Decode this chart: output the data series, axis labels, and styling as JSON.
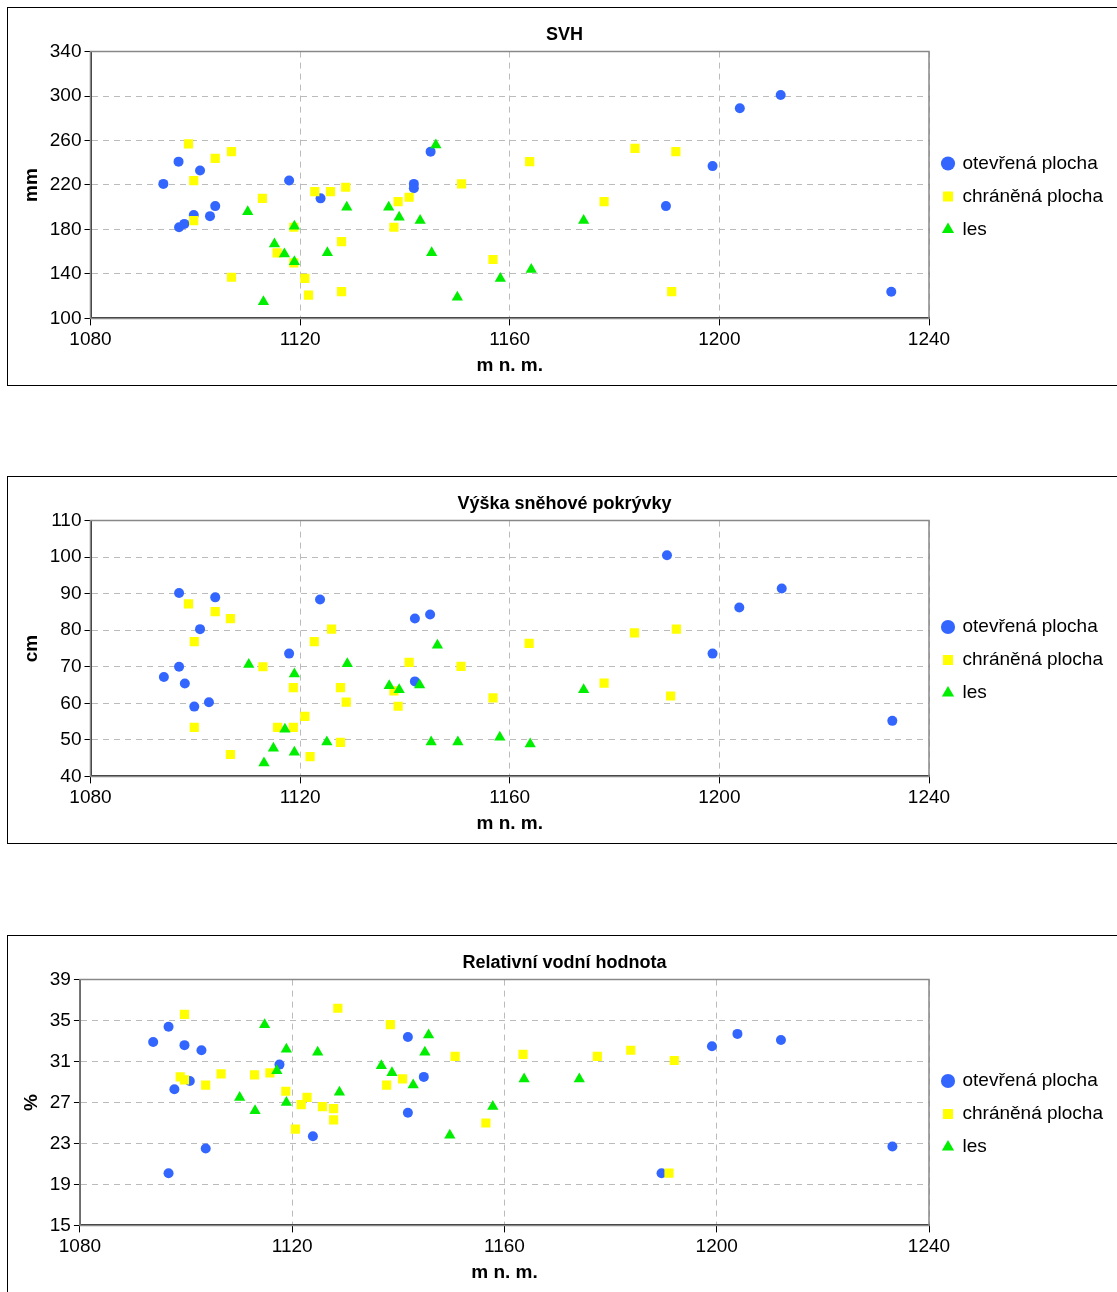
{
  "chart_data": [
    {
      "type": "scatter",
      "title": "SVH",
      "xlabel": "m n. m.",
      "ylabel": "mm",
      "xlim": [
        1080,
        1240
      ],
      "xticks": [
        1080,
        1120,
        1160,
        1200,
        1240
      ],
      "ylim": [
        100,
        340
      ],
      "yticks": [
        100,
        140,
        180,
        220,
        260,
        300,
        340
      ],
      "grid": true,
      "legend": "right",
      "series": [
        {
          "name": "otevřená plocha",
          "color": "#3366ff",
          "marker": "circle",
          "x": [
            1093.9,
            1096.8,
            1100.9,
            1099.7,
            1096.9,
            1097.9,
            1102.8,
            1103.8,
            1117.9,
            1123.9,
            1141.7,
            1141.7,
            1144.9,
            1203.9,
            1211.7,
            1198.7,
            1189.8,
            1232.8
          ],
          "values": [
            221,
            241,
            233,
            193,
            182,
            185,
            192,
            201,
            224,
            208,
            221,
            217,
            250,
            289,
            301,
            237,
            201,
            124
          ]
        },
        {
          "name": "chráněná plocha",
          "color": "#ffff00",
          "marker": "square",
          "x": [
            1098.7,
            1103.8,
            1106.9,
            1099.7,
            1099.7,
            1112.8,
            1115.6,
            1118.8,
            1118.8,
            1106.9,
            1120.9,
            1121.6,
            1122.8,
            1125.8,
            1128.7,
            1127.9,
            1127.9,
            1138.7,
            1140.8,
            1137.9,
            1150.8,
            1156.8,
            1163.8,
            1183.9,
            1191.7,
            1178,
            1190.9
          ],
          "values": [
            257,
            244,
            250,
            224,
            188,
            208,
            159,
            182,
            150,
            137,
            136,
            121,
            214,
            214,
            218,
            169,
            124,
            205,
            209,
            182,
            221,
            153,
            241,
            253,
            250,
            205,
            124
          ]
        },
        {
          "name": "les",
          "color": "#00ee00",
          "marker": "triangle",
          "x": [
            1110,
            1113,
            1115.1,
            1117,
            1118.9,
            1118.9,
            1125.2,
            1128.9,
            1136.9,
            1138.9,
            1142.9,
            1145.1,
            1145.9,
            1150,
            1158.2,
            1164.1,
            1174.1
          ],
          "values": [
            196,
            115,
            167,
            158,
            183,
            151,
            159,
            200,
            200,
            191,
            188,
            159,
            256,
            119,
            136,
            144,
            188
          ]
        }
      ]
    },
    {
      "type": "scatter",
      "title": "Výška sněhové pokrývky",
      "xlabel": "m n. m.",
      "ylabel": "cm",
      "xlim": [
        1080,
        1240
      ],
      "xticks": [
        1080,
        1120,
        1160,
        1200,
        1240
      ],
      "ylim": [
        40,
        110
      ],
      "yticks": [
        40,
        50,
        60,
        70,
        80,
        90,
        100,
        110
      ],
      "grid": true,
      "legend": "right",
      "series": [
        {
          "name": "otevřená plocha",
          "color": "#3366ff",
          "marker": "circle",
          "x": [
            1096.9,
            1103.8,
            1100.9,
            1117.9,
            1096.9,
            1094,
            1098,
            1099.8,
            1102.6,
            1123.8,
            1141.9,
            1144.8,
            1141.9,
            1190,
            1211.9,
            1203.8,
            1198.7,
            1233
          ],
          "values": [
            90.2,
            89,
            80.3,
            73.6,
            70,
            67.2,
            65.4,
            59.1,
            60.3,
            88.4,
            83.2,
            84.3,
            66,
            100.5,
            91.4,
            86.2,
            73.6,
            55.2
          ]
        },
        {
          "name": "chráněná plocha",
          "color": "#ffff00",
          "marker": "square",
          "x": [
            1098.7,
            1103.8,
            1106.7,
            1099.8,
            1099.8,
            1106.7,
            1112.9,
            1118.7,
            1115.7,
            1118.7,
            1120.9,
            1121.9,
            1122.7,
            1126,
            1127.7,
            1128.8,
            1127.7,
            1140.8,
            1137.9,
            1138.7,
            1150.7,
            1156.8,
            1163.7,
            1183.8,
            1191.8,
            1178,
            1190.7
          ],
          "values": [
            87.2,
            85.1,
            83.2,
            76.9,
            53.4,
            46,
            70,
            64.3,
            53.4,
            53.4,
            56.4,
            45.4,
            76.9,
            80.3,
            64.3,
            60.3,
            49.3,
            71.2,
            63.4,
            59.2,
            70.1,
            61.5,
            76.4,
            79.3,
            80.3,
            65.5,
            62
          ]
        },
        {
          "name": "les",
          "color": "#00ee00",
          "marker": "triangle",
          "x": [
            1110.2,
            1113.1,
            1114.9,
            1117.1,
            1118.9,
            1118.9,
            1125.1,
            1129,
            1137,
            1138.9,
            1142.8,
            1146.2,
            1145,
            1150.1,
            1158.1,
            1163.9,
            1174.1
          ],
          "values": [
            70.6,
            43.7,
            47.7,
            52.9,
            68,
            46.6,
            49.4,
            70.8,
            64.8,
            63.7,
            65,
            75.9,
            49.4,
            49.4,
            50.7,
            48.9,
            63.7
          ]
        }
      ]
    },
    {
      "type": "scatter",
      "title": "Relativní vodní hodnota",
      "xlabel": "m n. m.",
      "ylabel": "%",
      "xlim": [
        1080,
        1240
      ],
      "xticks": [
        1080,
        1120,
        1160,
        1200,
        1240
      ],
      "ylim": [
        15,
        39
      ],
      "yticks": [
        15,
        19,
        23,
        27,
        31,
        35,
        39
      ],
      "grid": true,
      "legend": "right",
      "series": [
        {
          "name": "otevřená plocha",
          "color": "#3366ff",
          "marker": "circle",
          "x": [
            1093.8,
            1096.7,
            1099.7,
            1102.9,
            1100.7,
            1097.8,
            1103.7,
            1096.7,
            1117.6,
            1123.9,
            1141.8,
            1144.8,
            1141.8,
            1199.1,
            1203.9,
            1212.1,
            1189.6,
            1233.1
          ],
          "values": [
            32.9,
            34.4,
            32.6,
            32.1,
            29.1,
            28.3,
            22.5,
            20.1,
            30.7,
            23.7,
            33.4,
            29.5,
            26,
            32.5,
            33.7,
            33.1,
            20.1,
            22.7
          ]
        },
        {
          "name": "chráněná plocha",
          "color": "#ffff00",
          "marker": "square",
          "x": [
            1099.7,
            1098.9,
            1099.7,
            1103.7,
            1106.6,
            1112.9,
            1115.8,
            1118.8,
            1120.6,
            1121.7,
            1122.8,
            1125.7,
            1127.8,
            1127.8,
            1128.6,
            1138.5,
            1137.8,
            1140.8,
            1150.7,
            1156.5,
            1163.5,
            1177.5,
            1183.8,
            1192,
            1191
          ],
          "values": [
            35.6,
            29.5,
            29.2,
            28.7,
            29.8,
            29.7,
            29.9,
            28.1,
            24.4,
            26.8,
            27.5,
            26.6,
            26.4,
            25.3,
            36.2,
            34.6,
            28.7,
            29.3,
            31.5,
            25,
            31.7,
            31.5,
            32.1,
            31.1,
            20.1
          ]
        },
        {
          "name": "les",
          "color": "#00ee00",
          "marker": "triangle",
          "x": [
            1114.8,
            1118.9,
            1117.1,
            1118.9,
            1110.1,
            1113,
            1124.8,
            1128.9,
            1136.8,
            1138.8,
            1142.8,
            1145,
            1145.7,
            1149.7,
            1157.8,
            1163.7,
            1174.1
          ],
          "values": [
            34.6,
            32.2,
            30.1,
            27,
            27.5,
            26.2,
            31.9,
            28,
            30.6,
            29.9,
            28.7,
            31.9,
            33.6,
            23.8,
            26.6,
            29.3,
            29.3
          ]
        }
      ]
    }
  ]
}
